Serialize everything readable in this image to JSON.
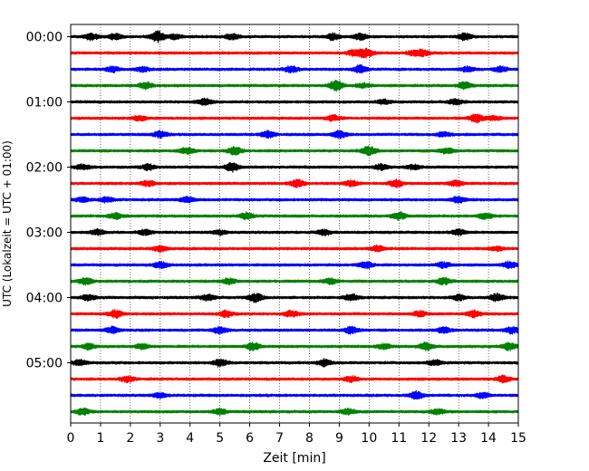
{
  "chart_data": {
    "type": "line",
    "title": "",
    "xlabel": "Zeit  [min]",
    "ylabel": "UTC (Lokalzeit = UTC + 01:00)",
    "xlim": [
      0,
      15
    ],
    "x_ticks": [
      "0",
      "1",
      "2",
      "3",
      "4",
      "5",
      "6",
      "7",
      "8",
      "9",
      "10",
      "11",
      "12",
      "13",
      "14",
      "15"
    ],
    "y_ticks": [
      {
        "label": "00:00",
        "trace_index": 0
      },
      {
        "label": "01:00",
        "trace_index": 4
      },
      {
        "label": "02:00",
        "trace_index": 8
      },
      {
        "label": "03:00",
        "trace_index": 12
      },
      {
        "label": "04:00",
        "trace_index": 16
      },
      {
        "label": "05:00",
        "trace_index": 20
      }
    ],
    "trace_interval_min": 15,
    "trace_count": 24,
    "color_cycle": [
      "#000000",
      "#ff0000",
      "#0000ff",
      "#008000"
    ],
    "vertical_grid": "dotted, every 1 min",
    "series": [
      {
        "start": "00:00",
        "events": [
          [
            0.7,
            0.6
          ],
          [
            1.5,
            0.5
          ],
          [
            2.9,
            1.0
          ],
          [
            3.5,
            0.4
          ],
          [
            5.4,
            0.5
          ],
          [
            8.8,
            0.6
          ],
          [
            9.7,
            0.6
          ],
          [
            13.2,
            0.6
          ]
        ]
      },
      {
        "start": "00:15",
        "events": [
          [
            9.5,
            0.6
          ],
          [
            9.9,
            0.8
          ],
          [
            11.5,
            0.4
          ],
          [
            11.8,
            0.5
          ]
        ]
      },
      {
        "start": "00:30",
        "events": [
          [
            1.4,
            0.5
          ],
          [
            2.4,
            0.4
          ],
          [
            7.4,
            0.6
          ],
          [
            9.7,
            0.7
          ],
          [
            13.3,
            0.5
          ],
          [
            14.4,
            0.5
          ]
        ]
      },
      {
        "start": "00:45",
        "events": [
          [
            2.5,
            0.6
          ],
          [
            8.9,
            1.0
          ],
          [
            9.8,
            0.4
          ],
          [
            13.2,
            0.6
          ]
        ]
      },
      {
        "start": "01:00",
        "events": [
          [
            4.5,
            0.6
          ],
          [
            10.5,
            0.4
          ],
          [
            12.9,
            0.5
          ]
        ]
      },
      {
        "start": "01:15",
        "events": [
          [
            2.3,
            0.4
          ],
          [
            8.8,
            0.5
          ],
          [
            13.6,
            0.8
          ],
          [
            14.2,
            0.4
          ]
        ]
      },
      {
        "start": "01:30",
        "events": [
          [
            3.0,
            0.6
          ],
          [
            6.6,
            0.6
          ],
          [
            9.0,
            0.7
          ],
          [
            12.5,
            0.4
          ]
        ]
      },
      {
        "start": "01:45",
        "events": [
          [
            3.9,
            0.6
          ],
          [
            5.5,
            0.7
          ],
          [
            10.0,
            0.8
          ],
          [
            12.6,
            0.5
          ]
        ]
      },
      {
        "start": "02:00",
        "events": [
          [
            0.4,
            0.5
          ],
          [
            2.6,
            0.5
          ],
          [
            5.4,
            0.8
          ],
          [
            10.4,
            0.5
          ],
          [
            11.5,
            0.4
          ]
        ]
      },
      {
        "start": "02:15",
        "events": [
          [
            2.6,
            0.5
          ],
          [
            7.6,
            0.7
          ],
          [
            9.4,
            0.5
          ],
          [
            10.9,
            0.7
          ],
          [
            12.9,
            0.5
          ]
        ]
      },
      {
        "start": "02:30",
        "events": [
          [
            0.4,
            0.4
          ],
          [
            1.2,
            0.5
          ],
          [
            3.9,
            0.5
          ],
          [
            13.0,
            0.6
          ]
        ]
      },
      {
        "start": "02:45",
        "events": [
          [
            1.5,
            0.5
          ],
          [
            5.9,
            0.6
          ],
          [
            11.0,
            0.7
          ],
          [
            13.9,
            0.5
          ]
        ]
      },
      {
        "start": "03:00",
        "events": [
          [
            0.9,
            0.5
          ],
          [
            2.5,
            0.5
          ],
          [
            5.0,
            0.4
          ],
          [
            8.5,
            0.5
          ],
          [
            13.0,
            0.5
          ]
        ]
      },
      {
        "start": "03:15",
        "events": [
          [
            3.0,
            0.5
          ],
          [
            10.3,
            0.5
          ],
          [
            14.3,
            0.4
          ]
        ]
      },
      {
        "start": "03:30",
        "events": [
          [
            3.0,
            0.6
          ],
          [
            9.9,
            0.6
          ],
          [
            12.5,
            0.5
          ],
          [
            14.7,
            0.6
          ]
        ]
      },
      {
        "start": "03:45",
        "events": [
          [
            0.5,
            0.6
          ],
          [
            5.3,
            0.5
          ],
          [
            8.7,
            0.5
          ],
          [
            12.5,
            0.6
          ]
        ]
      },
      {
        "start": "04:00",
        "events": [
          [
            0.6,
            0.5
          ],
          [
            4.6,
            0.6
          ],
          [
            6.2,
            0.8
          ],
          [
            9.4,
            0.6
          ],
          [
            13.0,
            0.5
          ],
          [
            14.3,
            0.7
          ]
        ]
      },
      {
        "start": "04:15",
        "events": [
          [
            1.5,
            0.7
          ],
          [
            5.2,
            0.6
          ],
          [
            7.4,
            0.6
          ],
          [
            11.7,
            0.5
          ],
          [
            13.5,
            0.6
          ]
        ]
      },
      {
        "start": "04:30",
        "events": [
          [
            1.4,
            0.6
          ],
          [
            5.0,
            0.6
          ],
          [
            9.4,
            0.6
          ],
          [
            12.5,
            0.5
          ],
          [
            14.8,
            0.6
          ]
        ]
      },
      {
        "start": "04:45",
        "events": [
          [
            0.6,
            0.5
          ],
          [
            2.4,
            0.5
          ],
          [
            6.1,
            0.7
          ],
          [
            10.5,
            0.5
          ],
          [
            11.9,
            0.7
          ],
          [
            14.7,
            0.7
          ]
        ]
      },
      {
        "start": "05:00",
        "events": [
          [
            0.3,
            0.5
          ],
          [
            5.0,
            0.7
          ],
          [
            8.5,
            0.6
          ],
          [
            12.2,
            0.5
          ]
        ]
      },
      {
        "start": "05:15",
        "events": [
          [
            1.9,
            0.5
          ],
          [
            9.4,
            0.5
          ],
          [
            14.5,
            0.6
          ]
        ]
      },
      {
        "start": "05:30",
        "events": [
          [
            3.0,
            0.5
          ],
          [
            11.6,
            0.7
          ],
          [
            13.8,
            0.5
          ]
        ]
      },
      {
        "start": "05:45",
        "events": [
          [
            0.4,
            0.6
          ],
          [
            5.0,
            0.5
          ],
          [
            9.3,
            0.5
          ],
          [
            12.3,
            0.5
          ]
        ]
      }
    ]
  }
}
